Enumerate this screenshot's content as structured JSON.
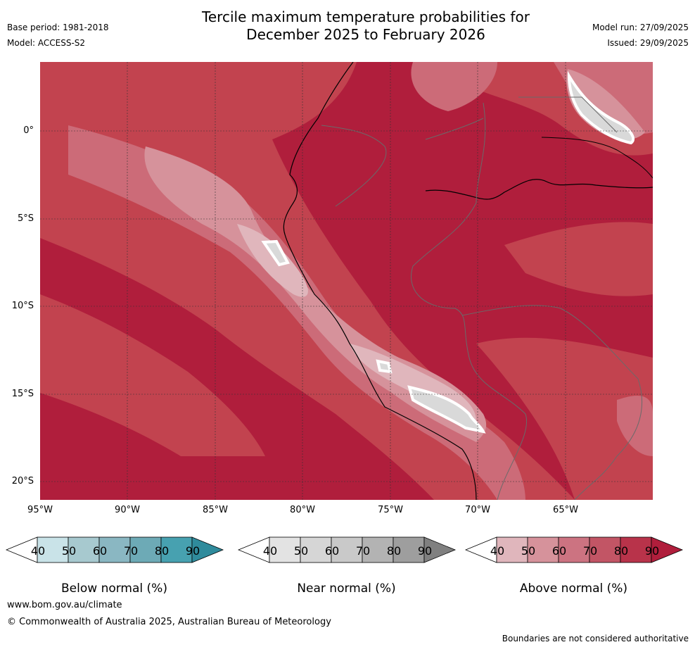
{
  "header": {
    "title_line1": "Tercile maximum temperature probabilities for",
    "title_line2": "December 2025 to February 2026",
    "base_period": "Base period: 1981-2018",
    "model": "Model: ACCESS-S2",
    "model_run": "Model run: 27/09/2025",
    "issued": "Issued: 29/09/2025"
  },
  "map": {
    "lat_labels": [
      "0°",
      "5°S",
      "10°S",
      "15°S",
      "20°S"
    ],
    "lon_labels": [
      "95°W",
      "90°W",
      "85°W",
      "80°W",
      "75°W",
      "70°W",
      "65°W"
    ]
  },
  "colorbars": {
    "below": {
      "label": "Below normal (%)",
      "ticks": [
        "40",
        "50",
        "60",
        "70",
        "80",
        "90"
      ],
      "colors": [
        "#c9e3e8",
        "#a7c9cf",
        "#8ab7c2",
        "#6daab6",
        "#47a1b0",
        "#2f8b9c"
      ]
    },
    "near": {
      "label": "Near normal (%)",
      "ticks": [
        "40",
        "50",
        "60",
        "70",
        "80",
        "90"
      ],
      "colors": [
        "#e3e3e3",
        "#d6d6d6",
        "#c9c9c9",
        "#b3b3b3",
        "#9e9e9e",
        "#808080"
      ]
    },
    "above": {
      "label": "Above normal (%)",
      "ticks": [
        "40",
        "50",
        "60",
        "70",
        "80",
        "90"
      ],
      "colors": [
        "#e0b6bc",
        "#d6929b",
        "#cc7381",
        "#c25565",
        "#b8334a",
        "#b01e3c"
      ]
    }
  },
  "footer": {
    "website": "www.bom.gov.au/climate",
    "copyright": "© Commonwealth of Australia 2025, Australian Bureau of Meteorology",
    "disclaimer": "Boundaries are not considered authoritative"
  }
}
